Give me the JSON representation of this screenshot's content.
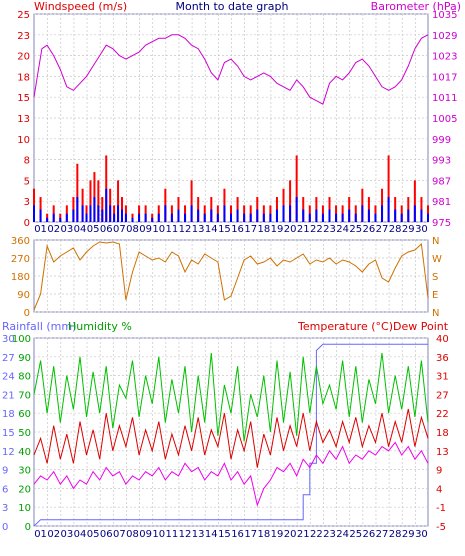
{
  "chart_data": [
    {
      "type": "bar",
      "panel": "wind",
      "title": "Month to date graph",
      "left_label": "Windspeed (m/s)",
      "right_label": "Barometer (hPa)",
      "ylim_left": [
        0,
        25
      ],
      "yticks_left": [
        "25",
        "23",
        "20",
        "18",
        "15",
        "13",
        "10",
        "8",
        "5",
        "3",
        "0"
      ],
      "ylim_right": [
        975,
        1035
      ],
      "yticks_right": [
        "1035",
        "1029",
        "1023",
        "1017",
        "1011",
        "1005",
        "999",
        "993",
        "987",
        "981",
        "975"
      ],
      "x_ticks": [
        "01",
        "02",
        "03",
        "04",
        "05",
        "06",
        "07",
        "08",
        "09",
        "10",
        "11",
        "12",
        "13",
        "14",
        "15",
        "16",
        "17",
        "18",
        "19",
        "20",
        "21",
        "22",
        "23",
        "24",
        "25",
        "26",
        "27",
        "28",
        "29",
        "30"
      ],
      "xlim": [
        0,
        30
      ],
      "grid": true,
      "series": [
        {
          "name": "Barometer",
          "color": "#d000d0",
          "axis": "right",
          "x": [
            0,
            0.3,
            0.6,
            1,
            1.5,
            2,
            2.5,
            3,
            3.5,
            4,
            4.5,
            5,
            5.5,
            6,
            6.5,
            7,
            7.5,
            8,
            8.5,
            9,
            9.5,
            10,
            10.5,
            11,
            11.5,
            12,
            12.5,
            13,
            13.5,
            14,
            14.5,
            15,
            15.5,
            16,
            16.5,
            17,
            17.5,
            18,
            18.5,
            19,
            19.5,
            20,
            20.5,
            21,
            21.5,
            22,
            22.5,
            23,
            23.5,
            24,
            24.5,
            25,
            25.5,
            26,
            26.5,
            27,
            27.5,
            28,
            28.5,
            29,
            29.5,
            30
          ],
          "values": [
            1011,
            1018,
            1025,
            1026,
            1023,
            1019,
            1014,
            1013,
            1015,
            1017,
            1020,
            1023,
            1026,
            1025,
            1023,
            1022,
            1023,
            1024,
            1026,
            1027,
            1028,
            1028,
            1029,
            1029,
            1028,
            1026,
            1025,
            1022,
            1018,
            1016,
            1021,
            1022,
            1020,
            1017,
            1016,
            1017,
            1018,
            1017,
            1015,
            1014,
            1013,
            1016,
            1014,
            1011,
            1010,
            1009,
            1015,
            1017,
            1016,
            1018,
            1021,
            1022,
            1020,
            1017,
            1014,
            1013,
            1014,
            1016,
            1020,
            1025,
            1028,
            1029
          ]
        },
        {
          "name": "Gust",
          "color": "#ff0000",
          "axis": "left",
          "x": [
            0,
            0.5,
            1,
            1.5,
            2,
            2.5,
            3,
            3.3,
            3.7,
            4,
            4.3,
            4.6,
            4.9,
            5.2,
            5.5,
            5.8,
            6.1,
            6.4,
            6.7,
            7,
            7.5,
            8,
            8.5,
            9,
            9.5,
            10,
            10.5,
            11,
            11.5,
            12,
            12.5,
            13,
            13.5,
            14,
            14.5,
            15,
            15.5,
            16,
            16.5,
            17,
            17.5,
            18,
            18.5,
            19,
            19.5,
            20,
            20.5,
            21,
            21.5,
            22,
            22.5,
            23,
            23.5,
            24,
            24.5,
            25,
            25.5,
            26,
            26.5,
            27,
            27.5,
            28,
            28.5,
            29,
            29.5,
            30
          ],
          "values": [
            4,
            3,
            1,
            2,
            1,
            2,
            3,
            7,
            4,
            2,
            5,
            6,
            5,
            3,
            8,
            4,
            2,
            5,
            3,
            2,
            1,
            2,
            2,
            1,
            2,
            4,
            2,
            3,
            2,
            5,
            3,
            2,
            3,
            2,
            4,
            2,
            3,
            2,
            2,
            3,
            2,
            2,
            3,
            4,
            5,
            8,
            3,
            2,
            3,
            2,
            3,
            2,
            2,
            3,
            2,
            4,
            3,
            2,
            4,
            8,
            3,
            2,
            3,
            5,
            3,
            2
          ]
        },
        {
          "name": "Wind",
          "color": "#0000ff",
          "axis": "left",
          "x": [
            0,
            0.5,
            1,
            1.5,
            2,
            2.5,
            3,
            3.3,
            3.7,
            4,
            4.3,
            4.6,
            4.9,
            5.2,
            5.5,
            5.8,
            6.1,
            6.4,
            6.7,
            7,
            7.5,
            8,
            8.5,
            9,
            9.5,
            10,
            10.5,
            11,
            11.5,
            12,
            12.5,
            13,
            13.5,
            14,
            14.5,
            15,
            15.5,
            16,
            16.5,
            17,
            17.5,
            18,
            18.5,
            19,
            19.5,
            20,
            20.5,
            21,
            21.5,
            22,
            22.5,
            23,
            23.5,
            24,
            24.5,
            25,
            25.5,
            26,
            26.5,
            27,
            27.5,
            28,
            28.5,
            29,
            29.5,
            30
          ],
          "values": [
            2,
            1.5,
            0.5,
            1,
            0.5,
            1,
            1.5,
            3,
            2,
            1,
            2,
            3,
            2,
            1.5,
            4,
            2,
            1,
            2,
            1.5,
            1,
            0.5,
            1,
            1,
            0.5,
            1,
            2,
            1,
            1.5,
            1,
            2,
            1.5,
            1,
            1.5,
            1,
            2,
            1,
            1.5,
            1,
            1,
            1.5,
            1,
            1,
            1.5,
            2,
            2,
            3,
            1.5,
            1,
            1.5,
            1,
            1.5,
            1,
            1,
            1.5,
            1,
            2,
            1.5,
            1,
            2,
            3,
            1.5,
            1,
            1.5,
            2,
            1.5,
            1
          ]
        }
      ]
    },
    {
      "type": "line",
      "panel": "direction",
      "ylim": [
        0,
        360
      ],
      "yticks": [
        "360",
        "270",
        "180",
        "90",
        "0"
      ],
      "compass": [
        "N",
        "W",
        "S",
        "E",
        "N"
      ],
      "xlim": [
        0,
        30
      ],
      "series": [
        {
          "name": "Wind direction",
          "color": "#d07000",
          "x": [
            0,
            0.5,
            1,
            1.5,
            2,
            2.5,
            3,
            3.5,
            4,
            4.5,
            5,
            5.5,
            6,
            6.5,
            7,
            7.5,
            8,
            8.5,
            9,
            9.5,
            10,
            10.5,
            11,
            11.5,
            12,
            12.5,
            13,
            13.5,
            14,
            14.5,
            15,
            15.5,
            16,
            16.5,
            17,
            17.5,
            18,
            18.5,
            19,
            19.5,
            20,
            20.5,
            21,
            21.5,
            22,
            22.5,
            23,
            23.5,
            24,
            24.5,
            25,
            25.5,
            26,
            26.5,
            27,
            27.5,
            28,
            28.5,
            29,
            29.5,
            30
          ],
          "values": [
            10,
            90,
            330,
            250,
            280,
            300,
            320,
            260,
            300,
            330,
            350,
            345,
            350,
            340,
            60,
            200,
            300,
            280,
            260,
            270,
            250,
            300,
            280,
            200,
            260,
            240,
            290,
            270,
            250,
            60,
            80,
            170,
            260,
            280,
            240,
            250,
            270,
            230,
            260,
            250,
            270,
            290,
            240,
            260,
            250,
            270,
            240,
            260,
            250,
            230,
            200,
            240,
            260,
            170,
            150,
            220,
            280,
            300,
            310,
            340,
            70
          ]
        }
      ]
    },
    {
      "type": "line",
      "panel": "temperature",
      "left_labels": [
        "Rainfall (mm)",
        "Humidity %"
      ],
      "right_labels": [
        "Temperature (°C)",
        "Dew Point"
      ],
      "rain_ticks": [
        "30",
        "27",
        "24",
        "21",
        "18",
        "15",
        "12",
        "9",
        "6",
        "3",
        "0"
      ],
      "humidity_ticks": [
        "100",
        "90",
        "80",
        "70",
        "60",
        "50",
        "40",
        "30",
        "20",
        "10",
        "0"
      ],
      "temp_ticks": [
        "40",
        "36",
        "31",
        "27",
        "22",
        "18",
        "13",
        "9",
        "4",
        "-1",
        "-5"
      ],
      "ylim_rain": [
        0,
        30
      ],
      "ylim_humidity": [
        0,
        100
      ],
      "ylim_temp": [
        -5,
        40
      ],
      "xlim": [
        0,
        30
      ],
      "series": [
        {
          "name": "Rainfall",
          "color": "#6666ff",
          "axis": "rain",
          "x": [
            0,
            0.5,
            20.5,
            20.5,
            21,
            21,
            21.5,
            21.5,
            22,
            30
          ],
          "values": [
            0,
            1,
            1,
            5,
            5,
            10,
            10,
            28,
            29,
            29
          ]
        },
        {
          "name": "Humidity",
          "color": "#00c000",
          "axis": "humidity",
          "x": [
            0,
            0.5,
            1,
            1.5,
            2,
            2.5,
            3,
            3.5,
            4,
            4.5,
            5,
            5.5,
            6,
            6.5,
            7,
            7.5,
            8,
            8.5,
            9,
            9.5,
            10,
            10.5,
            11,
            11.5,
            12,
            12.5,
            13,
            13.5,
            14,
            14.5,
            15,
            15.5,
            16,
            16.5,
            17,
            17.5,
            18,
            18.5,
            19,
            19.5,
            20,
            20.5,
            21,
            21.5,
            22,
            22.5,
            23,
            23.5,
            24,
            24.5,
            25,
            25.5,
            26,
            26.5,
            27,
            27.5,
            28,
            28.5,
            29,
            29.5,
            30
          ],
          "values": [
            70,
            88,
            60,
            85,
            55,
            80,
            62,
            90,
            58,
            82,
            60,
            85,
            52,
            75,
            68,
            88,
            58,
            80,
            65,
            90,
            55,
            78,
            60,
            85,
            50,
            80,
            55,
            92,
            48,
            75,
            60,
            85,
            45,
            70,
            58,
            80,
            50,
            88,
            55,
            82,
            48,
            90,
            60,
            85,
            65,
            75,
            62,
            88,
            58,
            85,
            55,
            78,
            65,
            92,
            60,
            80,
            62,
            85,
            58,
            88,
            55
          ]
        },
        {
          "name": "Temperature",
          "color": "#dd0000",
          "axis": "temp",
          "x": [
            0,
            0.5,
            1,
            1.5,
            2,
            2.5,
            3,
            3.5,
            4,
            4.5,
            5,
            5.5,
            6,
            6.5,
            7,
            7.5,
            8,
            8.5,
            9,
            9.5,
            10,
            10.5,
            11,
            11.5,
            12,
            12.5,
            13,
            13.5,
            14,
            14.5,
            15,
            15.5,
            16,
            16.5,
            17,
            17.5,
            18,
            18.5,
            19,
            19.5,
            20,
            20.5,
            21,
            21.5,
            22,
            22.5,
            23,
            23.5,
            24,
            24.5,
            25,
            25.5,
            26,
            26.5,
            27,
            27.5,
            28,
            28.5,
            29,
            29.5,
            30
          ],
          "values": [
            12,
            16,
            10,
            19,
            11,
            17,
            10,
            20,
            12,
            18,
            11,
            22,
            13,
            19,
            14,
            21,
            12,
            18,
            13,
            20,
            11,
            17,
            12,
            19,
            13,
            21,
            12,
            18,
            14,
            22,
            11,
            18,
            13,
            20,
            9,
            17,
            12,
            21,
            13,
            19,
            14,
            22,
            13,
            20,
            15,
            18,
            14,
            20,
            15,
            21,
            14,
            19,
            15,
            22,
            14,
            20,
            15,
            23,
            14,
            21,
            16
          ]
        },
        {
          "name": "Dew Point",
          "color": "#ee00ee",
          "axis": "temp",
          "x": [
            0,
            0.5,
            1,
            1.5,
            2,
            2.5,
            3,
            3.5,
            4,
            4.5,
            5,
            5.5,
            6,
            6.5,
            7,
            7.5,
            8,
            8.5,
            9,
            9.5,
            10,
            10.5,
            11,
            11.5,
            12,
            12.5,
            13,
            13.5,
            14,
            14.5,
            15,
            15.5,
            16,
            16.5,
            17,
            17.5,
            18,
            18.5,
            19,
            19.5,
            20,
            20.5,
            21,
            21.5,
            22,
            22.5,
            23,
            23.5,
            24,
            24.5,
            25,
            25.5,
            26,
            26.5,
            27,
            27.5,
            28,
            28.5,
            29,
            29.5,
            30
          ],
          "values": [
            5,
            7,
            6,
            8,
            5,
            7,
            4,
            6,
            5,
            8,
            6,
            9,
            7,
            8,
            5,
            7,
            6,
            8,
            7,
            9,
            6,
            8,
            7,
            10,
            8,
            9,
            6,
            8,
            7,
            10,
            6,
            8,
            5,
            7,
            0,
            4,
            6,
            9,
            8,
            10,
            7,
            11,
            9,
            12,
            10,
            13,
            11,
            14,
            10,
            12,
            11,
            13,
            12,
            14,
            13,
            15,
            12,
            14,
            11,
            13,
            10
          ]
        }
      ]
    }
  ],
  "colors": {
    "left_axis_label": "#dd0000",
    "right_axis_label": "#d000d0",
    "title": "#000080",
    "tick_wind": "#dd0000",
    "tick_baro": "#d000d0",
    "tick_dir": "#d07000",
    "tick_rain": "#6666ff",
    "tick_hum": "#00a000",
    "tick_temp": "#dd0000",
    "x_tick": "#000080",
    "grid": "#c8c8c8",
    "frame": "#8080c0"
  }
}
